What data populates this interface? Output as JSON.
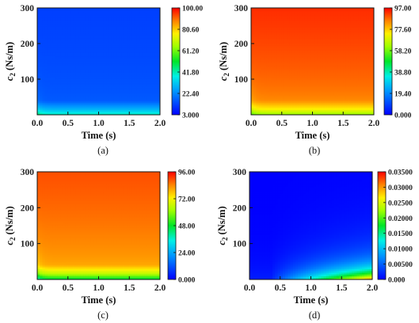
{
  "chart_data": [
    {
      "id": "a",
      "type": "heatmap",
      "caption": "(a)",
      "xlabel": "Time (s)",
      "ylabel_main": "c",
      "ylabel_sub": "2",
      "ylabel_unit": " (Ns/m)",
      "xlim": [
        0,
        2
      ],
      "ylim": [
        0,
        300
      ],
      "xticks": [
        "0.0",
        "0.5",
        "1.0",
        "1.5",
        "2.0"
      ],
      "yticks": [
        "100",
        "200",
        "300"
      ],
      "colorbar": {
        "min": 3.0,
        "max": 100.0,
        "ticks": [
          "100.00",
          "80.60",
          "61.20",
          "41.80",
          "22.40",
          "3.000"
        ]
      },
      "field": {
        "kind": "low_bottom_band",
        "v_top": 12,
        "v_mid": 16,
        "v_band": 28,
        "v_bottom": 42
      }
    },
    {
      "id": "b",
      "type": "heatmap",
      "caption": "(b)",
      "xlabel": "Time (s)",
      "ylabel_main": "c",
      "ylabel_sub": "2",
      "ylabel_unit": " (Ns/m)",
      "xlim": [
        0,
        2
      ],
      "ylim": [
        0,
        300
      ],
      "xticks": [
        "0.0",
        "0.5",
        "1.0",
        "1.5",
        "2.0"
      ],
      "yticks": [
        "100",
        "200",
        "300"
      ],
      "colorbar": {
        "min": 0.0,
        "max": 97.0,
        "ticks": [
          "97.00",
          "77.60",
          "58.20",
          "38.80",
          "19.40",
          "0.000"
        ]
      },
      "field": {
        "kind": "high_bottom_band",
        "v_top": 93,
        "v_mid": 84,
        "v_band": 74,
        "v_bottom": 60
      }
    },
    {
      "id": "c",
      "type": "heatmap",
      "caption": "(c)",
      "xlabel": "Time (s)",
      "ylabel_main": "c",
      "ylabel_sub": "2",
      "ylabel_unit": " (Ns/m)",
      "xlim": [
        0,
        2
      ],
      "ylim": [
        0,
        300
      ],
      "xticks": [
        "0.0",
        "0.5",
        "1.0",
        "1.5",
        "2.0"
      ],
      "yticks": [
        "100",
        "200",
        "300"
      ],
      "colorbar": {
        "min": 0.0,
        "max": 96.0,
        "ticks": [
          "96.00",
          "72.00",
          "48.00",
          "24.00",
          "0.000"
        ]
      },
      "field": {
        "kind": "high_bottom_band",
        "v_top": 89,
        "v_mid": 80,
        "v_band": 66,
        "v_bottom": 44
      }
    },
    {
      "id": "d",
      "type": "heatmap",
      "caption": "(d)",
      "xlabel": "Time (s)",
      "ylabel_main": "c",
      "ylabel_sub": "2",
      "ylabel_unit": " (Ns/m)",
      "xlim": [
        0,
        2
      ],
      "ylim": [
        0,
        300
      ],
      "xticks": [
        "0.0",
        "0.5",
        "1.0",
        "1.5",
        "2.0"
      ],
      "yticks": [
        "100",
        "200",
        "300"
      ],
      "colorbar": {
        "min": 0.0,
        "max": 0.035,
        "ticks": [
          "0.03500",
          "0.03000",
          "0.02500",
          "0.02000",
          "0.01500",
          "0.01000",
          "0.00500",
          "0.000"
        ]
      },
      "field": {
        "kind": "corner_growth",
        "v_peak": 0.026
      }
    }
  ]
}
